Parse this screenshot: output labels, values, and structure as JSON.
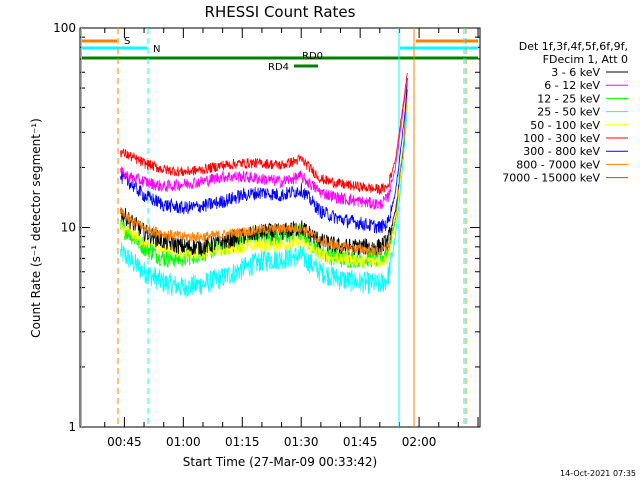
{
  "chart_data": {
    "type": "line",
    "title": "RHESSI Count Rates",
    "xlabel": "Start Time (27-Mar-09 00:33:42)",
    "ylabel": "Count Rate (s⁻¹ detector segment⁻¹)",
    "yscale": "log",
    "ylim": [
      1,
      100
    ],
    "y_tick_labels": [
      "1",
      "10",
      "100"
    ],
    "xlim_minutes": [
      33.7,
      135.5
    ],
    "x_ticks": [
      {
        "label": "00:45",
        "minutes": 45
      },
      {
        "label": "01:00",
        "minutes": 60
      },
      {
        "label": "01:15",
        "minutes": 75
      },
      {
        "label": "01:30",
        "minutes": 90
      },
      {
        "label": "01:45",
        "minutes": 105
      },
      {
        "label": "02:00",
        "minutes": 120
      }
    ],
    "grid": false,
    "legend_placement": "right",
    "legend_header": [
      "Det 1f,3f,4f,5f,6f,9f,",
      "FDecim 1, Att 0"
    ],
    "series": [
      {
        "name": "3 - 6 keV",
        "color": "#000000",
        "points": [
          [
            44,
            12
          ],
          [
            46,
            11
          ],
          [
            50,
            9.5
          ],
          [
            55,
            8.5
          ],
          [
            60,
            8
          ],
          [
            65,
            8
          ],
          [
            70,
            8.5
          ],
          [
            75,
            9
          ],
          [
            80,
            9.5
          ],
          [
            85,
            9.5
          ],
          [
            90,
            10
          ],
          [
            95,
            8.5
          ],
          [
            100,
            8
          ],
          [
            105,
            8
          ],
          [
            110,
            8
          ],
          [
            112,
            8.5
          ],
          [
            114,
            12
          ],
          [
            116,
            25
          ],
          [
            117,
            55
          ]
        ]
      },
      {
        "name": "6 - 12 keV",
        "color": "#ff00ff",
        "points": [
          [
            44,
            19
          ],
          [
            46,
            18
          ],
          [
            50,
            17
          ],
          [
            55,
            16
          ],
          [
            60,
            16.5
          ],
          [
            65,
            17
          ],
          [
            70,
            18
          ],
          [
            75,
            18
          ],
          [
            80,
            17.5
          ],
          [
            85,
            17
          ],
          [
            90,
            18
          ],
          [
            95,
            15
          ],
          [
            100,
            14
          ],
          [
            105,
            13.5
          ],
          [
            110,
            13
          ],
          [
            112,
            14
          ],
          [
            114,
            20
          ],
          [
            116,
            40
          ],
          [
            117,
            55
          ]
        ]
      },
      {
        "name": "12 - 25 keV",
        "color": "#00ff00",
        "points": [
          [
            44,
            10
          ],
          [
            46,
            9.5
          ],
          [
            50,
            8
          ],
          [
            55,
            7
          ],
          [
            60,
            7
          ],
          [
            65,
            7.5
          ],
          [
            70,
            8
          ],
          [
            75,
            8.5
          ],
          [
            80,
            9
          ],
          [
            85,
            9
          ],
          [
            90,
            9.5
          ],
          [
            95,
            7.5
          ],
          [
            100,
            7
          ],
          [
            105,
            7
          ],
          [
            110,
            7
          ],
          [
            112,
            7.5
          ],
          [
            114,
            11
          ],
          [
            116,
            25
          ],
          [
            117,
            45
          ]
        ]
      },
      {
        "name": "25 - 50 keV",
        "color": "#00ffff",
        "points": [
          [
            44,
            7.5
          ],
          [
            46,
            7
          ],
          [
            50,
            6
          ],
          [
            55,
            5.3
          ],
          [
            60,
            5
          ],
          [
            65,
            5.2
          ],
          [
            70,
            5.6
          ],
          [
            75,
            6.2
          ],
          [
            80,
            6.8
          ],
          [
            85,
            7
          ],
          [
            90,
            7.2
          ],
          [
            95,
            6
          ],
          [
            100,
            5.5
          ],
          [
            105,
            5.3
          ],
          [
            110,
            5.2
          ],
          [
            112,
            5.5
          ],
          [
            114,
            9
          ],
          [
            116,
            22
          ],
          [
            117,
            40
          ]
        ]
      },
      {
        "name": "50 - 100 keV",
        "color": "#ffff00",
        "points": [
          [
            44,
            10
          ],
          [
            46,
            9.5
          ],
          [
            50,
            8.5
          ],
          [
            55,
            7.8
          ],
          [
            60,
            7.5
          ],
          [
            65,
            7.5
          ],
          [
            70,
            7.8
          ],
          [
            75,
            8
          ],
          [
            80,
            8.2
          ],
          [
            85,
            8.2
          ],
          [
            90,
            8.5
          ],
          [
            95,
            7.2
          ],
          [
            100,
            7
          ],
          [
            105,
            6.8
          ],
          [
            110,
            6.8
          ],
          [
            112,
            7
          ],
          [
            114,
            10
          ],
          [
            116,
            25
          ],
          [
            117,
            45
          ]
        ]
      },
      {
        "name": "100 - 300 keV",
        "color": "#ff0000",
        "points": [
          [
            44,
            24
          ],
          [
            46,
            23
          ],
          [
            50,
            21
          ],
          [
            55,
            19.5
          ],
          [
            60,
            19
          ],
          [
            65,
            19.5
          ],
          [
            70,
            20.5
          ],
          [
            75,
            21
          ],
          [
            80,
            21
          ],
          [
            85,
            20.5
          ],
          [
            90,
            22
          ],
          [
            95,
            17.5
          ],
          [
            100,
            16.5
          ],
          [
            105,
            16
          ],
          [
            110,
            15.5
          ],
          [
            112,
            16
          ],
          [
            114,
            22
          ],
          [
            116,
            42
          ],
          [
            117,
            60
          ]
        ]
      },
      {
        "name": "300 - 800 keV",
        "color": "#0000ff",
        "points": [
          [
            44,
            18
          ],
          [
            46,
            17
          ],
          [
            50,
            14.5
          ],
          [
            55,
            13
          ],
          [
            60,
            12.5
          ],
          [
            65,
            12.8
          ],
          [
            70,
            13.5
          ],
          [
            75,
            14.5
          ],
          [
            80,
            15
          ],
          [
            85,
            14.5
          ],
          [
            90,
            15.5
          ],
          [
            95,
            12
          ],
          [
            100,
            11
          ],
          [
            105,
            10.5
          ],
          [
            110,
            10
          ],
          [
            112,
            10.5
          ],
          [
            114,
            15
          ],
          [
            116,
            32
          ],
          [
            117,
            50
          ]
        ]
      },
      {
        "name": "800 - 7000 keV",
        "color": "#ff8000",
        "points": [
          [
            44,
            12
          ],
          [
            46,
            11
          ],
          [
            50,
            10
          ],
          [
            55,
            9.3
          ],
          [
            60,
            9
          ],
          [
            65,
            9
          ],
          [
            70,
            9.2
          ],
          [
            75,
            9.5
          ],
          [
            80,
            9.8
          ],
          [
            85,
            9.8
          ],
          [
            90,
            10
          ],
          [
            95,
            8.5
          ],
          [
            100,
            8
          ],
          [
            105,
            7.8
          ],
          [
            110,
            7.6
          ],
          [
            112,
            8
          ],
          [
            114,
            11
          ],
          [
            116,
            26
          ],
          [
            117,
            48
          ]
        ]
      },
      {
        "name": "7000 - 15000 keV",
        "color": "#996600",
        "points": []
      }
    ],
    "annotations": [
      {
        "label": "S",
        "color": "#ff8000"
      },
      {
        "label": "N",
        "color": "#00ffff"
      },
      {
        "label": "RD0",
        "color": "#008000"
      },
      {
        "label": "RD4",
        "color": "#008000"
      }
    ]
  },
  "footer": {
    "timestamp": "14-Oct-2021 07:35"
  }
}
